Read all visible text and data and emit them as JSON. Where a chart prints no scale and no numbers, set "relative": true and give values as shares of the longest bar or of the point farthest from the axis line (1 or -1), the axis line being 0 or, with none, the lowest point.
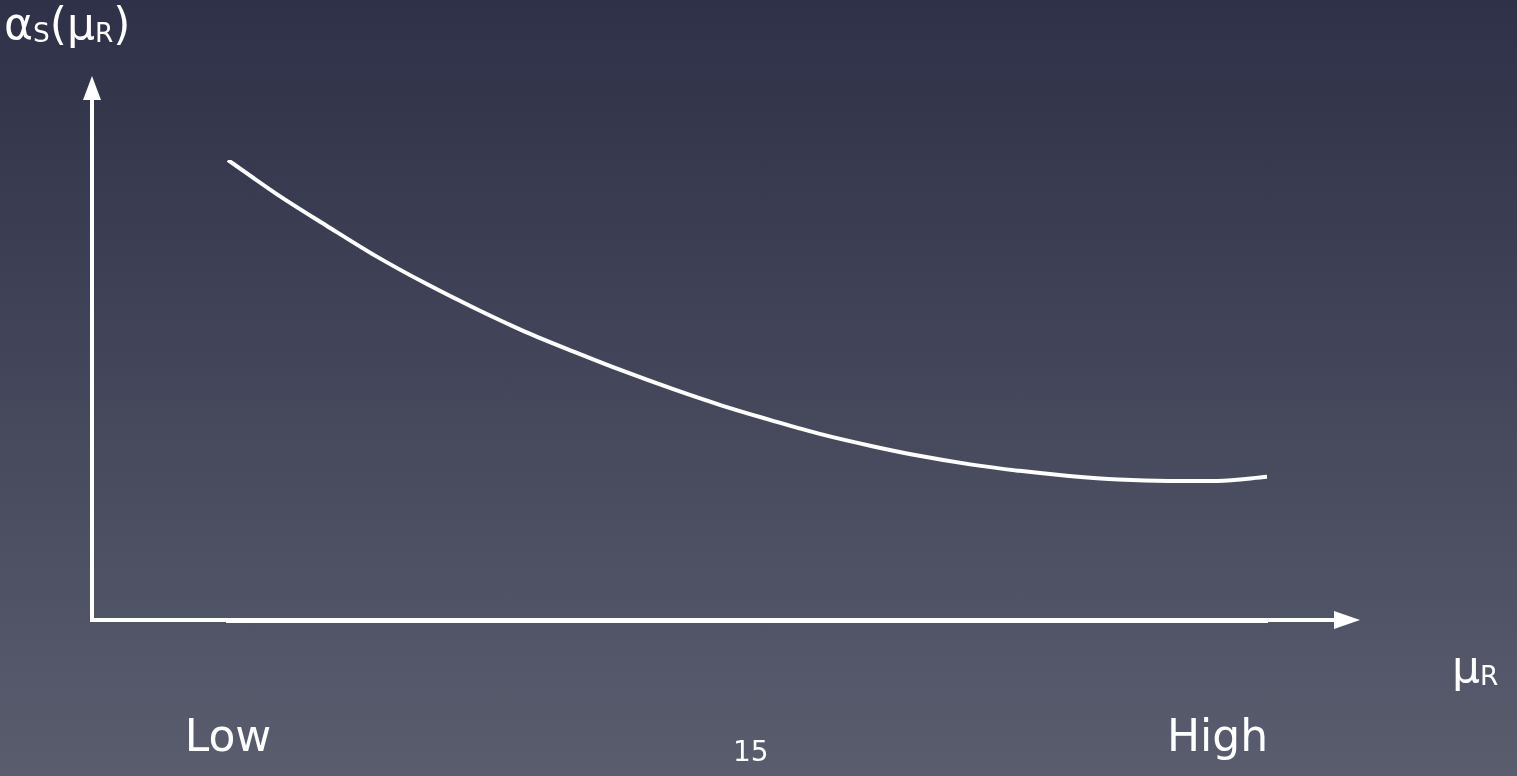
{
  "chart_data": {
    "type": "line",
    "relative": true,
    "ylabel": "α$_{S}$(μ$_{R}$)",
    "xlabel": "μ$_{R}$",
    "annotations": [
      "15"
    ],
    "categories": [
      "Low",
      null,
      null,
      null,
      null,
      null,
      null,
      null,
      null,
      null,
      null,
      null,
      null,
      null,
      null,
      null,
      null,
      null,
      null,
      null,
      "High",
      null
    ],
    "series": [
      {
        "color": "#ffffff",
        "values": [
          1,
          0.925,
          0.857,
          0.791,
          0.732,
          0.678,
          0.628,
          0.584,
          0.542,
          0.503,
          0.467,
          0.435,
          0.405,
          0.38,
          0.358,
          0.34,
          0.326,
          0.315,
          0.307,
          0.304,
          0.304,
          0.313
        ]
      }
    ],
    "marker": "none"
  }
}
